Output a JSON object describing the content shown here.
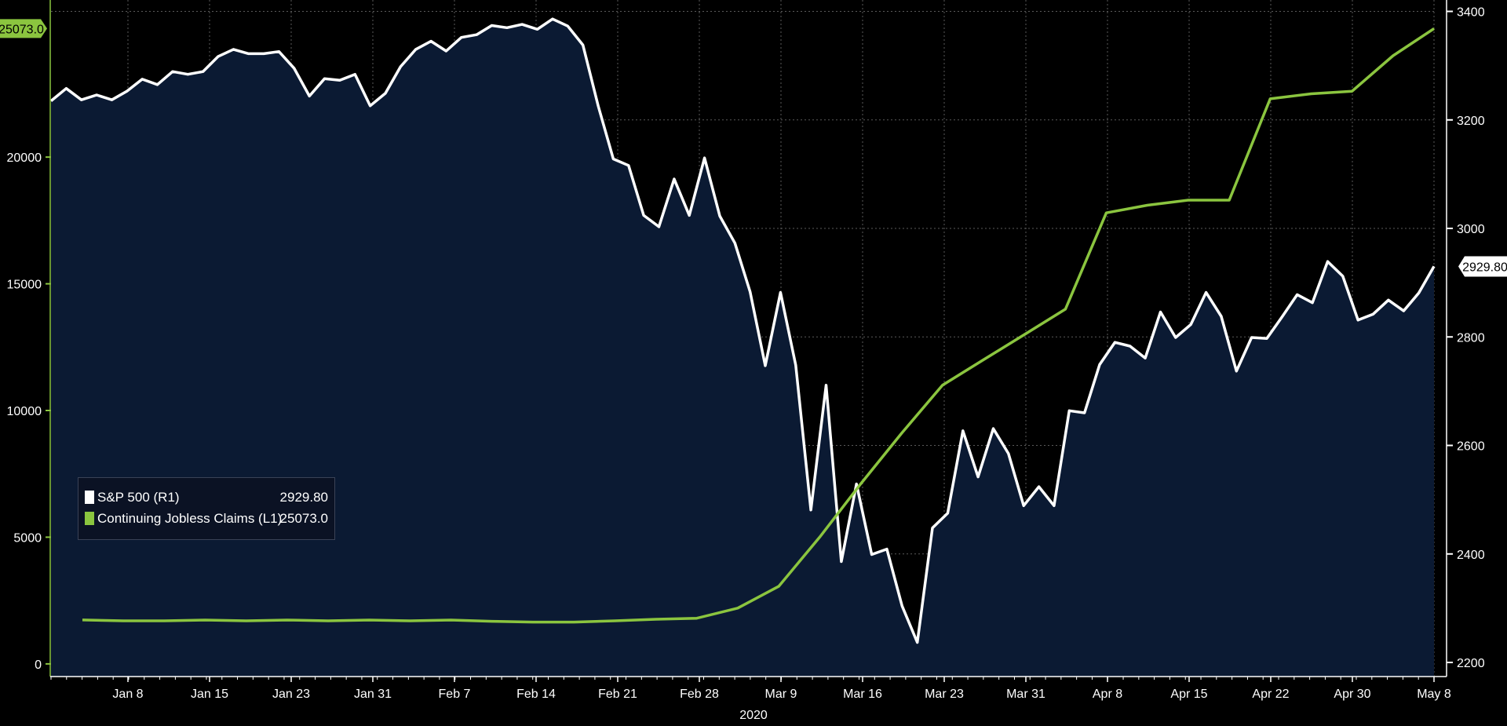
{
  "chart_data": {
    "type": "line",
    "x_label": "2020",
    "x_ticks": [
      "Jan 8",
      "Jan 15",
      "Jan 23",
      "Jan 31",
      "Feb 7",
      "Feb 14",
      "Feb 21",
      "Feb 28",
      "Mar 9",
      "Mar 16",
      "Mar 23",
      "Mar 31",
      "Apr 8",
      "Apr 15",
      "Apr 22",
      "Apr 30",
      "May 8"
    ],
    "left_axis": {
      "ticks": [
        "0",
        "5000",
        "10000",
        "15000",
        "20000"
      ],
      "ylim": [
        -500,
        26200
      ]
    },
    "right_axis": {
      "ticks": [
        "2200",
        "2400",
        "2600",
        "2800",
        "3000",
        "3200",
        "3400"
      ],
      "ylim": [
        2174,
        3421
      ]
    },
    "series": [
      {
        "name": "S&P 500 (R1)",
        "axis": "right",
        "color": "#ffffff",
        "fill": "#0b1a33",
        "last_value": "2929.80",
        "values": [
          3235,
          3258,
          3237,
          3246,
          3237,
          3253,
          3275,
          3265,
          3289,
          3284,
          3289,
          3317,
          3330,
          3322,
          3322,
          3326,
          3295,
          3244,
          3276,
          3273,
          3284,
          3226,
          3249,
          3298,
          3330,
          3345,
          3327,
          3352,
          3357,
          3374,
          3370,
          3376,
          3367,
          3386,
          3373,
          3338,
          3226,
          3128,
          3116,
          3024,
          3003,
          3091,
          3024,
          3130,
          3023,
          2973,
          2883,
          2747,
          2882,
          2748,
          2481,
          2711,
          2386,
          2529,
          2399,
          2409,
          2304,
          2237,
          2448,
          2475,
          2627,
          2542,
          2631,
          2585,
          2489,
          2524,
          2489,
          2664,
          2660,
          2749,
          2790,
          2783,
          2761,
          2846,
          2799,
          2823,
          2882,
          2838,
          2737,
          2799,
          2797,
          2837,
          2878,
          2863,
          2939,
          2912,
          2831,
          2842,
          2868,
          2848,
          2881,
          2930
        ]
      },
      {
        "name": "Continuing Jobless Claims  (L1)",
        "axis": "left",
        "color": "#8bc53f",
        "last_value": "25073.0",
        "values": [
          1733,
          1700,
          1700,
          1730,
          1700,
          1730,
          1700,
          1730,
          1700,
          1730,
          1680,
          1650,
          1650,
          1700,
          1760,
          1800,
          2200,
          3060,
          5000,
          7100,
          9100,
          11000,
          12000,
          13000,
          14000,
          17800,
          18100,
          18300,
          18300,
          22300,
          22500,
          22600,
          24000,
          25073
        ]
      }
    ]
  },
  "value_tag_left": "25073.0",
  "value_tag_right": "2929.80",
  "legend": {
    "row1_label": "S&P 500 (R1)",
    "row1_value": "2929.80",
    "row2_label": "Continuing Jobless Claims  (L1)",
    "row2_value": "25073.0"
  }
}
